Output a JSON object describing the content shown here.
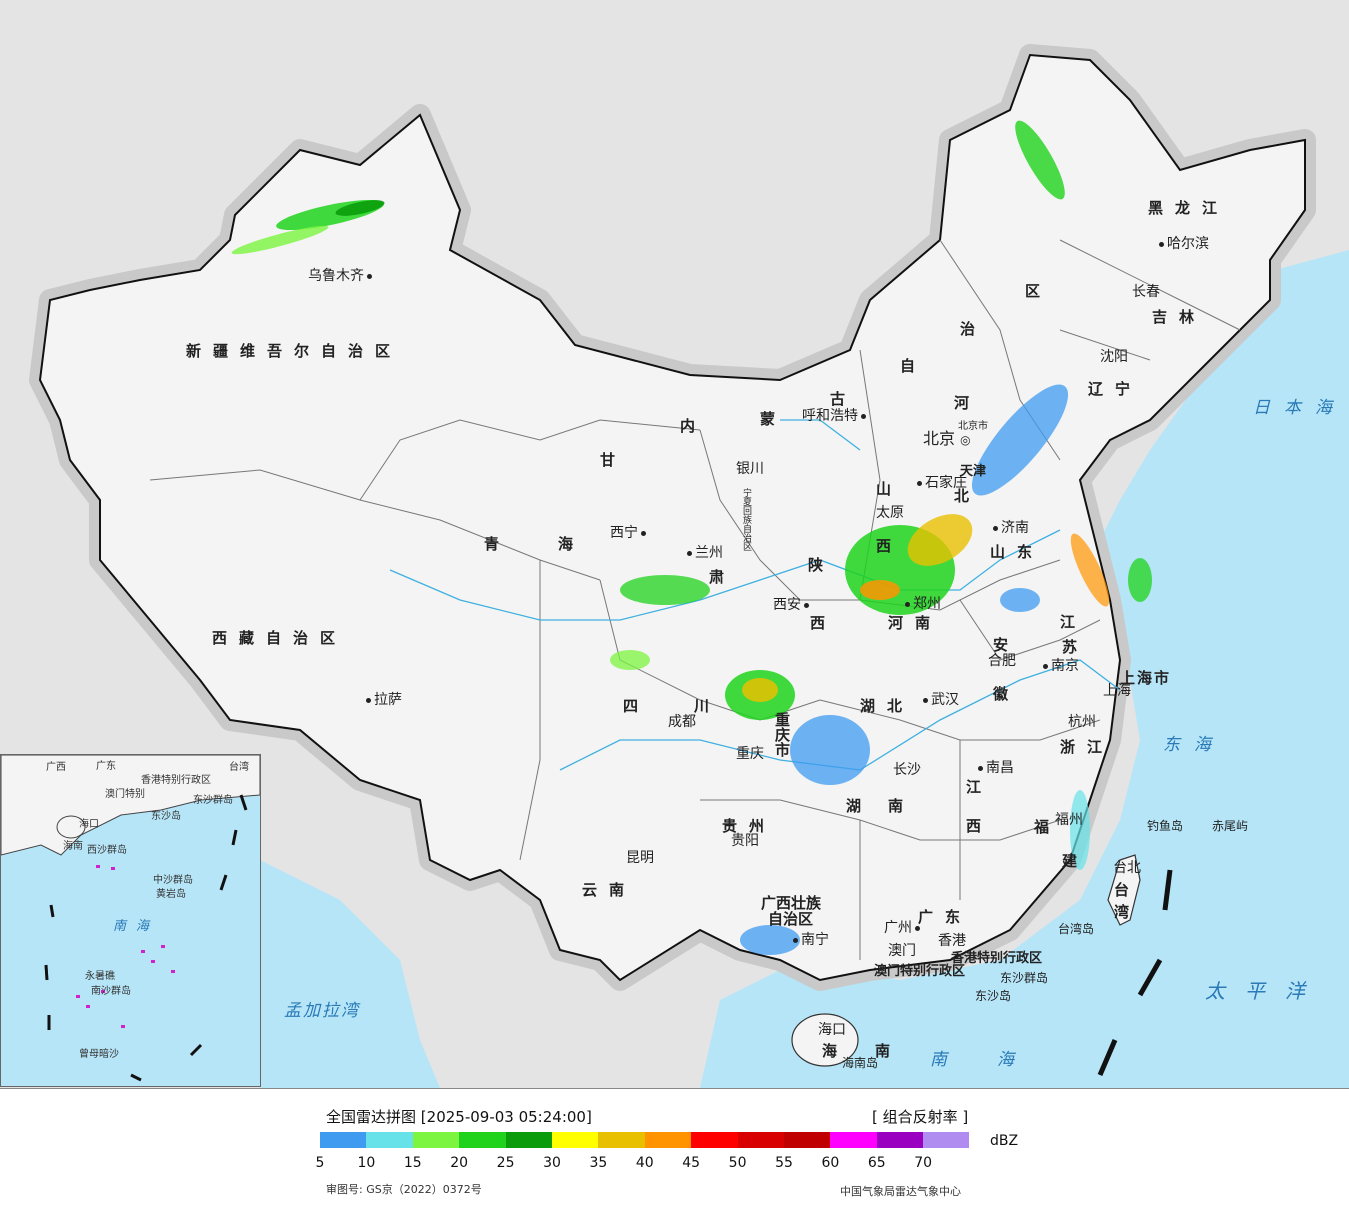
{
  "map": {
    "title": "全国雷达拼图",
    "timestamp": "[2025-09-03 05:24:00]",
    "product": "[ 组合反射率 ]",
    "unit": "dBZ",
    "approval": "审图号: GS京（2022）0372号",
    "credit": "中国气象局雷达气象中心"
  },
  "legend": {
    "colors": [
      "#3f9bf0",
      "#66e2e8",
      "#7cf540",
      "#1fd31c",
      "#0a9c0a",
      "#ffff00",
      "#e8c000",
      "#ff9400",
      "#ff0000",
      "#d80000",
      "#c00000",
      "#ff00ff",
      "#9a00c0",
      "#b08cf0"
    ],
    "ticks": [
      "5",
      "10",
      "15",
      "20",
      "25",
      "30",
      "35",
      "40",
      "45",
      "50",
      "55",
      "60",
      "65",
      "70"
    ]
  },
  "provinces": {
    "xinjiang": "新疆维吾尔自治区",
    "xizang": "西藏自治区",
    "qinghai_a": "青",
    "qinghai_b": "海",
    "gansu": "甘",
    "su": "肃",
    "neimenggu_nei": "内",
    "neimenggu_meng": "蒙",
    "neimenggu_gu": "古",
    "neimenggu_zi": "自",
    "neimenggu_zhi": "治",
    "neimenggu_qu": "区",
    "heilongjiang": "黑龙江",
    "jilin": "吉林",
    "liaoning": "辽宁",
    "hebei_he": "河",
    "hebei_bei": "北",
    "shanxi_shan": "山",
    "shanxi_xi": "西",
    "shandong": "山东",
    "henan": "河南",
    "shaanxi_shan": "陕",
    "shaanxi_xi": "西",
    "sichuan_si": "四",
    "sichuan_chuan": "川",
    "chongqing": "重庆市",
    "hubei": "湖北",
    "hunan_hu": "湖",
    "hunan_nan": "南",
    "anhui_an": "安",
    "anhui_hui": "徽",
    "jiangsu_jiang": "江",
    "jiangsu_su": "苏",
    "shanghai": "上海市",
    "zhejiang": "浙江",
    "jiangxi_jiang": "江",
    "jiangxi_xi": "西",
    "fujian_fu": "福",
    "fujian_jian": "建",
    "guizhou": "贵州",
    "yunnan": "云南",
    "guangxi_1": "广西壮族",
    "guangxi_2": "自治区",
    "guangdong": "广东",
    "hainan_hai": "海",
    "hainan_nan": "南",
    "taiwan_tai": "台",
    "taiwan_wan": "湾",
    "ningxia": "宁夏回族自治区",
    "tianjin": "天津",
    "beijing_small": "北京市",
    "hk": "香港特别行政区",
    "macau": "澳门特别行政区"
  },
  "cities": {
    "urumqi": "乌鲁木齐",
    "lhasa": "拉萨",
    "xining": "西宁",
    "lanzhou": "兰州",
    "yinchuan": "银川",
    "hohhot": "呼和浩特",
    "beijing": "北京",
    "shijiazhuang": "石家庄",
    "taiyuan": "太原",
    "jinan": "济南",
    "zhengzhou": "郑州",
    "xian": "西安",
    "chengdu": "成都",
    "chongqing": "重庆",
    "wuhan": "武汉",
    "hefei": "合肥",
    "nanjing": "南京",
    "shanghai": "上海",
    "hangzhou": "杭州",
    "changsha": "长沙",
    "nanchang": "南昌",
    "fuzhou": "福州",
    "taibei": "台北",
    "guiyang": "贵阳",
    "kunming": "昆明",
    "nanning": "南宁",
    "guangzhou": "广州",
    "hongkong": "香港",
    "macao": "澳门",
    "haikou": "海口",
    "shenyang": "沈阳",
    "changchun": "长春",
    "harbin": "哈尔滨",
    "tianjin": "天津"
  },
  "places": {
    "diaoyu": "钓鱼岛",
    "chiwei": "赤尾屿",
    "taiwan_island": "台湾岛",
    "hainan_island": "海南岛",
    "dongsha_qundao": "东沙群岛",
    "dongsha_dao": "东沙岛"
  },
  "seas": {
    "japan": "日本海",
    "donghai": "东海",
    "pacific": "太平洋",
    "nanhai": "南海",
    "bengal": "孟加拉湾"
  },
  "inset": {
    "guangdong": "广东",
    "guangxi": "广西",
    "taiwan": "台湾",
    "hk": "香港特别行政区",
    "macau": "澳门特别",
    "dongsha": "东沙群岛",
    "dongshadao": "东沙岛",
    "haikou": "海口",
    "hainan": "海南",
    "xisha": "西沙群岛",
    "zhongsha": "中沙群岛",
    "huangyan": "黄岩岛",
    "nanhai": "南海",
    "yongshu": "永暑礁",
    "nansha": "南沙群岛",
    "zengmu": "曾母暗沙"
  }
}
